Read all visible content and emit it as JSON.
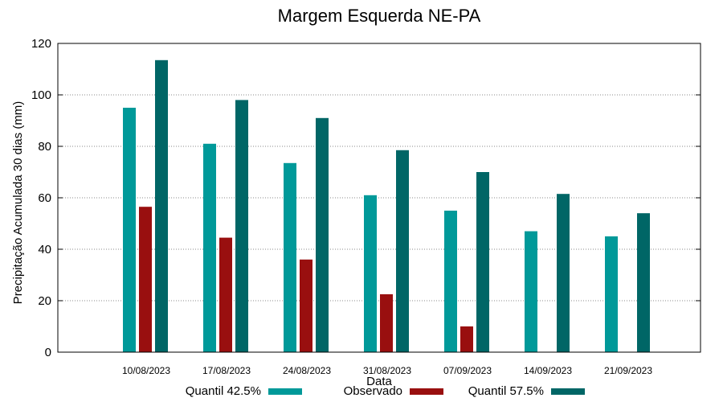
{
  "chart_data": {
    "type": "bar",
    "title": "Margem Esquerda NE-PA",
    "xlabel": "Data",
    "ylabel": "Precipitação Acumulada 30 dias (mm)",
    "ylim": [
      0,
      120
    ],
    "yticks": [
      0,
      20,
      40,
      60,
      80,
      100,
      120
    ],
    "grid": true,
    "legend_position": "bottom",
    "categories": [
      "10/08/2023",
      "17/08/2023",
      "24/08/2023",
      "31/08/2023",
      "07/09/2023",
      "14/09/2023",
      "21/09/2023"
    ],
    "series": [
      {
        "name": "Quantil 42.5%",
        "color": "#009999",
        "values": [
          95,
          81,
          73.5,
          61,
          55,
          47,
          45
        ]
      },
      {
        "name": "Observado",
        "color": "#990f0f",
        "values": [
          56.5,
          44.5,
          36,
          22.5,
          10,
          null,
          null
        ]
      },
      {
        "name": "Quantil 57.5%",
        "color": "#006666",
        "values": [
          113.5,
          98,
          91,
          78.5,
          70,
          61.5,
          54
        ]
      }
    ]
  }
}
